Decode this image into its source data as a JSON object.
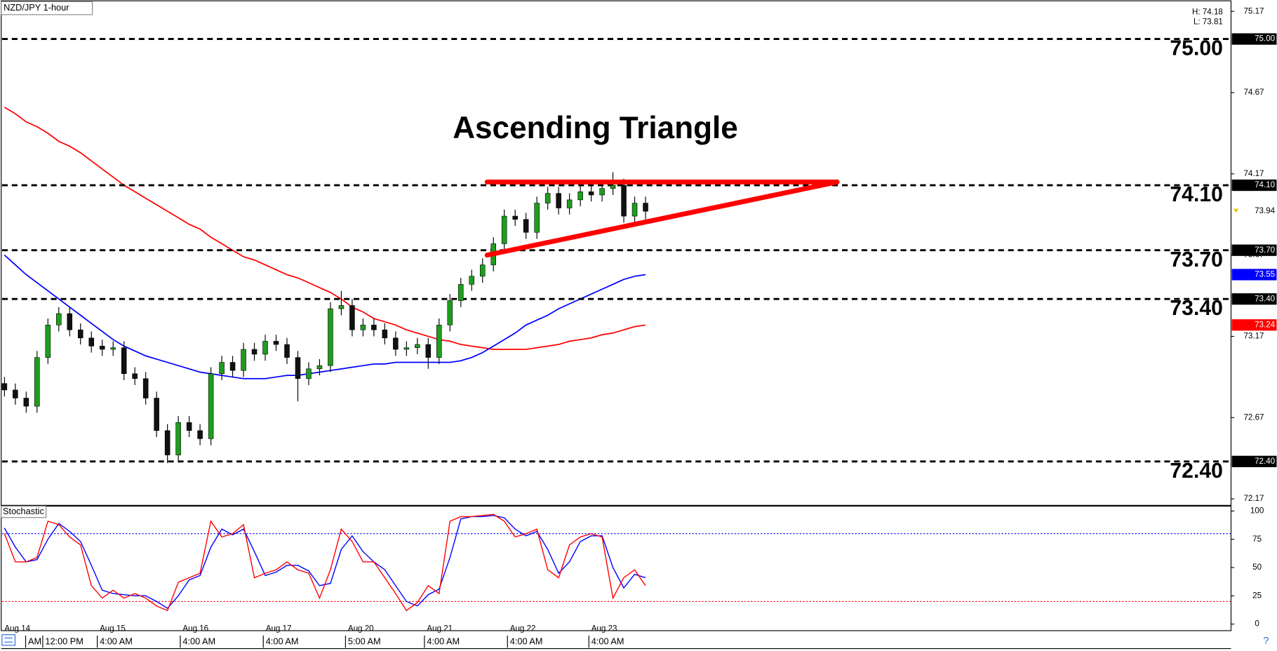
{
  "chart_data": {
    "type": "candlestick",
    "symbol": "NZD/JPY 1-hour",
    "title": "Ascending Triangle",
    "hl": [
      "H: 74.18",
      "L: 73.81"
    ],
    "ylim": [
      72.13,
      75.24
    ],
    "yticks": [
      75.17,
      74.67,
      74.17,
      73.67,
      73.17,
      72.67,
      72.17
    ],
    "grid": false,
    "up_color": "#1f9d1f",
    "down_color": "#111111",
    "levels": [
      {
        "value": 75,
        "label": "75.00"
      },
      {
        "value": 74.1,
        "label": "74.10"
      },
      {
        "value": 73.7,
        "label": "73.70"
      },
      {
        "value": 73.4,
        "label": "73.40"
      },
      {
        "value": 72.4,
        "label": "72.40"
      }
    ],
    "triangle": {
      "color": "#ff0000",
      "resistance": 74.12,
      "support_start": 73.67
    },
    "candles": {
      "open": [
        72.88,
        72.84,
        72.79,
        72.74,
        73.04,
        73.24,
        73.31,
        73.21,
        73.16,
        73.11,
        73.09,
        73.1,
        72.94,
        72.91,
        72.79,
        72.59,
        72.44,
        72.64,
        72.59,
        72.54,
        72.94,
        73.01,
        72.96,
        73.09,
        73.06,
        73.14,
        73.12,
        73.04,
        72.91,
        72.97,
        72.99,
        73.34,
        73.36,
        73.21,
        73.24,
        73.21,
        73.16,
        73.09,
        73.1,
        73.12,
        73.04,
        73.24,
        73.39,
        73.49,
        73.54,
        73.61,
        73.74,
        73.91,
        73.89,
        73.81,
        73.99,
        74.05,
        73.96,
        74.01,
        74.06,
        74.04,
        74.08,
        74.1,
        73.91,
        73.99
      ],
      "high": [
        72.92,
        72.88,
        72.83,
        73.08,
        73.28,
        73.35,
        73.35,
        73.25,
        73.2,
        73.15,
        73.14,
        73.14,
        72.98,
        72.95,
        72.83,
        72.63,
        72.68,
        72.68,
        72.63,
        72.98,
        73.05,
        73.05,
        73.13,
        73.13,
        73.18,
        73.18,
        73.16,
        73.08,
        73.01,
        73.03,
        73.38,
        73.45,
        73.4,
        73.28,
        73.28,
        73.25,
        73.2,
        73.14,
        73.16,
        73.16,
        73.28,
        73.43,
        73.53,
        73.58,
        73.65,
        73.78,
        73.95,
        73.95,
        73.93,
        74.03,
        74.09,
        74.09,
        74.05,
        74.1,
        74.1,
        74.12,
        74.18,
        74.14,
        74.03,
        74.03
      ],
      "low": [
        72.8,
        72.75,
        72.7,
        72.7,
        73.0,
        73.2,
        73.17,
        73.12,
        73.07,
        73.05,
        73.05,
        72.9,
        72.87,
        72.75,
        72.55,
        72.39,
        72.4,
        72.55,
        72.5,
        72.5,
        72.9,
        72.92,
        72.92,
        73.02,
        73.02,
        73.08,
        73.0,
        72.77,
        72.87,
        72.93,
        72.95,
        73.3,
        73.17,
        73.17,
        73.17,
        73.12,
        73.05,
        73.05,
        73.06,
        72.97,
        73.0,
        73.2,
        73.35,
        73.45,
        73.5,
        73.57,
        73.7,
        73.85,
        73.77,
        73.77,
        73.95,
        73.92,
        73.92,
        73.97,
        74.0,
        74.0,
        74.04,
        73.87,
        73.87,
        73.89
      ],
      "close": [
        72.84,
        72.79,
        72.74,
        73.04,
        73.24,
        73.31,
        73.21,
        73.16,
        73.11,
        73.09,
        73.1,
        72.94,
        72.91,
        72.79,
        72.59,
        72.44,
        72.64,
        72.59,
        72.54,
        72.94,
        73.01,
        72.96,
        73.09,
        73.06,
        73.14,
        73.12,
        73.04,
        72.91,
        72.97,
        72.99,
        73.34,
        73.36,
        73.21,
        73.24,
        73.21,
        73.16,
        73.09,
        73.1,
        73.12,
        73.04,
        73.24,
        73.39,
        73.49,
        73.54,
        73.61,
        73.74,
        73.91,
        73.89,
        73.81,
        73.99,
        74.05,
        73.96,
        74.01,
        74.06,
        74.04,
        74.08,
        74.1,
        73.91,
        73.99,
        73.94
      ]
    },
    "ma": [
      {
        "color": "#ff0000",
        "values": [
          74.58,
          74.54,
          74.49,
          74.46,
          74.42,
          74.37,
          74.34,
          74.3,
          74.25,
          74.2,
          74.15,
          74.1,
          74.06,
          74.02,
          73.98,
          73.94,
          73.9,
          73.86,
          73.83,
          73.78,
          73.74,
          73.7,
          73.66,
          73.64,
          73.61,
          73.58,
          73.55,
          73.53,
          73.5,
          73.47,
          73.44,
          73.4,
          73.35,
          73.32,
          73.28,
          73.26,
          73.24,
          73.21,
          73.19,
          73.17,
          73.15,
          73.14,
          73.12,
          73.11,
          73.1,
          73.09,
          73.09,
          73.09,
          73.09,
          73.1,
          73.11,
          73.12,
          73.14,
          73.15,
          73.16,
          73.18,
          73.19,
          73.21,
          73.23,
          73.24
        ]
      },
      {
        "color": "#0000ff",
        "values": [
          73.67,
          73.61,
          73.55,
          73.5,
          73.45,
          73.4,
          73.35,
          73.3,
          73.25,
          73.2,
          73.15,
          73.11,
          73.08,
          73.05,
          73.03,
          73.01,
          72.99,
          72.97,
          72.95,
          72.94,
          72.93,
          72.92,
          72.91,
          72.91,
          72.91,
          72.92,
          72.93,
          72.93,
          72.94,
          72.95,
          72.96,
          72.97,
          72.98,
          72.99,
          73.0,
          73.0,
          73.01,
          73.01,
          73.01,
          73.01,
          73.01,
          73.01,
          73.02,
          73.04,
          73.07,
          73.11,
          73.15,
          73.19,
          73.24,
          73.27,
          73.3,
          73.34,
          73.37,
          73.4,
          73.43,
          73.46,
          73.49,
          73.52,
          73.54,
          73.55
        ]
      }
    ],
    "stochastic": {
      "label": "Stochastic",
      "ylim": [
        -5.8,
        104.3
      ],
      "yticks": [
        0,
        25,
        50,
        75,
        100
      ],
      "levels": [
        {
          "value": 80,
          "color": "#0000ff"
        },
        {
          "value": 20,
          "color": "#ff0000"
        }
      ],
      "series": [
        {
          "color": "#0000ff",
          "values": [
            85,
            68,
            55,
            57,
            75,
            89,
            82,
            73,
            52,
            30,
            27,
            26,
            25,
            25,
            20,
            14,
            25,
            39,
            43,
            68,
            84,
            79,
            84,
            64,
            43,
            46,
            52,
            52,
            47,
            34,
            36,
            66,
            78,
            64,
            55,
            48,
            34,
            20,
            16,
            26,
            31,
            59,
            93,
            95,
            95,
            96,
            94,
            84,
            78,
            82,
            66,
            45,
            55,
            73,
            78,
            78,
            50,
            32,
            44,
            41
          ]
        },
        {
          "color": "#ff0000",
          "values": [
            80,
            55,
            55,
            59,
            91,
            88,
            77,
            70,
            34,
            23,
            30,
            23,
            27,
            23,
            16,
            12,
            37,
            41,
            45,
            91,
            77,
            80,
            88,
            41,
            45,
            48,
            55,
            48,
            45,
            23,
            48,
            84,
            73,
            55,
            55,
            41,
            27,
            12,
            19,
            34,
            27,
            91,
            95,
            95,
            96,
            97,
            91,
            77,
            80,
            84,
            48,
            41,
            70,
            77,
            80,
            77,
            23,
            41,
            48,
            34
          ]
        }
      ]
    },
    "dates": [
      "Aug 14",
      "Aug 15",
      "Aug 16",
      "Aug 17",
      "Aug 20",
      "Aug 21",
      "Aug 22",
      "Aug 23"
    ],
    "times": [
      "AM",
      "12:00 PM",
      "4:00 AM",
      "4:00 AM",
      "4:00 AM",
      "5:00 AM",
      "4:00 AM",
      "4:00 AM",
      "4:00 AM"
    ]
  }
}
